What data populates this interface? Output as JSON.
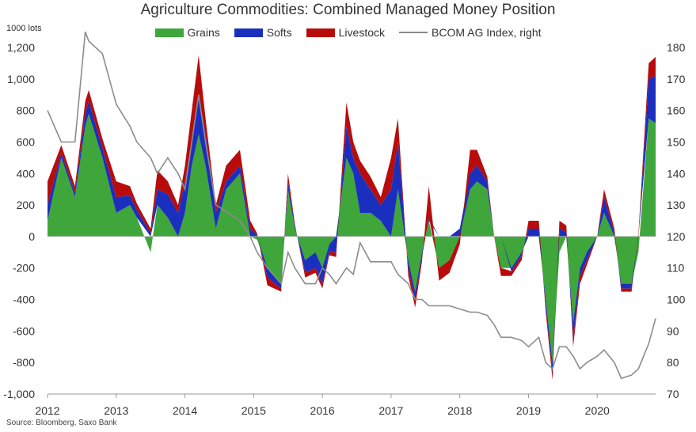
{
  "title": "Agriculture Commodities: Combined Managed Money Position",
  "source": "Source: Bloomberg, Saxo Bank",
  "chart_data": {
    "type": "area",
    "stacked": true,
    "y_unit_label": "1000 lots",
    "x_tick_labels": [
      "2012",
      "2013",
      "2014",
      "2015",
      "2016",
      "2017",
      "2018",
      "2019",
      "2020"
    ],
    "xlim": [
      2012.0,
      2020.85
    ],
    "ylim_left": [
      -1000,
      1200
    ],
    "yticks_left": [
      -1000,
      -800,
      -600,
      -400,
      -200,
      0,
      200,
      400,
      600,
      800,
      1000,
      1200
    ],
    "ytick_labels_left": [
      "-1,000",
      "-800",
      "-600",
      "-400",
      "-200",
      "0",
      "200",
      "400",
      "600",
      "800",
      "1,000",
      "1,200"
    ],
    "ylim_right": [
      70,
      180
    ],
    "yticks_right": [
      70,
      80,
      90,
      100,
      110,
      120,
      130,
      140,
      150,
      160,
      170,
      180
    ],
    "grid": false,
    "legend_position": "top",
    "colors": {
      "grains": "#3ea63a",
      "softs": "#1b2fbf",
      "livestock": "#b80c0c",
      "index": "#8c8c8c"
    },
    "x": [
      2012.0,
      2012.2,
      2012.4,
      2012.55,
      2012.6,
      2012.8,
      2013.0,
      2013.2,
      2013.3,
      2013.5,
      2013.6,
      2013.75,
      2013.9,
      2014.0,
      2014.1,
      2014.2,
      2014.3,
      2014.45,
      2014.6,
      2014.8,
      2014.95,
      2015.05,
      2015.2,
      2015.4,
      2015.5,
      2015.6,
      2015.75,
      2015.9,
      2016.0,
      2016.1,
      2016.2,
      2016.35,
      2016.45,
      2016.55,
      2016.7,
      2016.85,
      2017.0,
      2017.1,
      2017.25,
      2017.35,
      2017.45,
      2017.55,
      2017.7,
      2017.85,
      2018.0,
      2018.15,
      2018.25,
      2018.4,
      2018.5,
      2018.6,
      2018.75,
      2018.9,
      2019.0,
      2019.15,
      2019.25,
      2019.35,
      2019.45,
      2019.55,
      2019.65,
      2019.75,
      2019.85,
      2020.0,
      2020.1,
      2020.25,
      2020.35,
      2020.5,
      2020.6,
      2020.75,
      2020.85
    ],
    "series": [
      {
        "name": "Grains",
        "values": [
          100,
          500,
          250,
          700,
          780,
          500,
          150,
          200,
          120,
          -100,
          200,
          120,
          0,
          150,
          450,
          650,
          450,
          50,
          300,
          400,
          0,
          -20,
          -200,
          -300,
          300,
          50,
          -150,
          -100,
          -200,
          -50,
          0,
          500,
          400,
          150,
          150,
          100,
          0,
          300,
          -150,
          -350,
          -100,
          100,
          -200,
          -150,
          0,
          300,
          350,
          300,
          0,
          -200,
          -200,
          -100,
          0,
          0,
          -400,
          -800,
          -100,
          0,
          -550,
          -200,
          -100,
          0,
          150,
          0,
          -300,
          -300,
          -100,
          750,
          720
        ]
      },
      {
        "name": "Softs",
        "values": [
          100,
          30,
          30,
          80,
          80,
          60,
          100,
          60,
          50,
          20,
          100,
          150,
          150,
          200,
          150,
          250,
          200,
          100,
          50,
          50,
          50,
          10,
          -60,
          -30,
          50,
          20,
          -80,
          -100,
          -100,
          -50,
          -100,
          200,
          100,
          250,
          150,
          100,
          300,
          300,
          -50,
          -50,
          -30,
          20,
          0,
          0,
          50,
          100,
          100,
          50,
          0,
          0,
          -20,
          -20,
          50,
          50,
          -50,
          -60,
          50,
          30,
          -100,
          -50,
          -50,
          0,
          100,
          20,
          -30,
          -30,
          0,
          250,
          300
        ]
      },
      {
        "name": "Livestock",
        "values": [
          150,
          50,
          40,
          80,
          70,
          60,
          100,
          60,
          40,
          30,
          120,
          80,
          50,
          100,
          200,
          250,
          100,
          50,
          100,
          100,
          50,
          10,
          -50,
          -20,
          50,
          10,
          -30,
          -30,
          -30,
          -20,
          -30,
          150,
          100,
          80,
          80,
          50,
          200,
          150,
          -50,
          -50,
          -30,
          200,
          -80,
          -80,
          -50,
          150,
          100,
          30,
          0,
          -50,
          -30,
          -30,
          50,
          50,
          -30,
          -50,
          50,
          40,
          -50,
          -50,
          -30,
          0,
          50,
          30,
          -20,
          -20,
          20,
          100,
          120
        ]
      },
      {
        "name": "BCOM AG Index, right",
        "axis": "right",
        "values": [
          160,
          150,
          150,
          185,
          182,
          178,
          162,
          155,
          150,
          145,
          140,
          145,
          140,
          135,
          150,
          165,
          150,
          130,
          128,
          125,
          120,
          115,
          110,
          105,
          115,
          110,
          105,
          105,
          110,
          108,
          105,
          110,
          108,
          118,
          112,
          112,
          112,
          108,
          105,
          100,
          100,
          98,
          98,
          98,
          97,
          96,
          96,
          95,
          92,
          88,
          88,
          87,
          85,
          88,
          80,
          78,
          85,
          85,
          82,
          78,
          80,
          82,
          84,
          80,
          75,
          76,
          78,
          86,
          94
        ]
      }
    ]
  }
}
